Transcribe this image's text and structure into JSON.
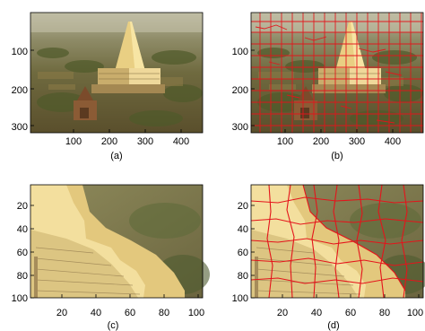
{
  "figure": {
    "panels": [
      {
        "id": "a",
        "caption": "(a)",
        "x_ticks": [
          "100",
          "200",
          "300",
          "400"
        ],
        "y_ticks": [
          "100",
          "200",
          "300"
        ],
        "overlay": "none"
      },
      {
        "id": "b",
        "caption": "(b)",
        "x_ticks": [
          "100",
          "200",
          "300",
          "400"
        ],
        "y_ticks": [
          "100",
          "200",
          "300"
        ],
        "overlay": "red superpixel boundaries"
      },
      {
        "id": "c",
        "caption": "(c)",
        "x_ticks": [
          "20",
          "40",
          "60",
          "80",
          "100"
        ],
        "y_ticks": [
          "20",
          "40",
          "60",
          "80",
          "100"
        ],
        "overlay": "none"
      },
      {
        "id": "d",
        "caption": "(d)",
        "x_ticks": [
          "20",
          "40",
          "60",
          "80",
          "100"
        ],
        "y_ticks": [
          "20",
          "40",
          "60",
          "80",
          "100"
        ],
        "overlay": "red superpixel boundaries"
      }
    ],
    "colors": {
      "boundary": "#e4141b",
      "temple_highlight": "#f0d37d",
      "sky": "#b9b59b"
    }
  }
}
